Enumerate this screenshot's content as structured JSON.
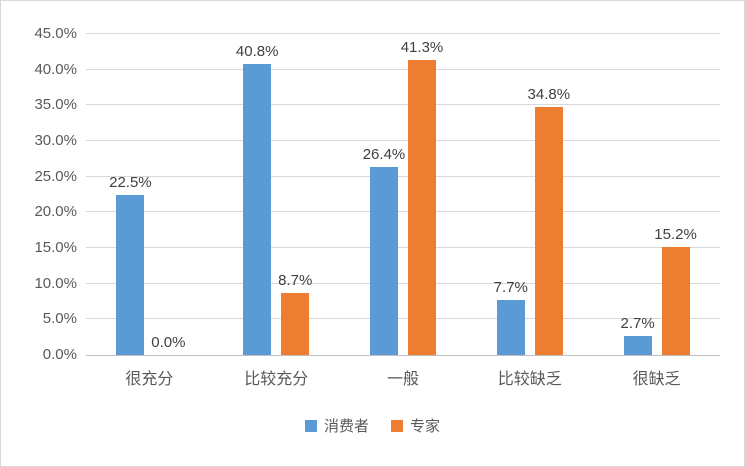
{
  "chart_data": {
    "type": "bar",
    "title": "",
    "xlabel": "",
    "ylabel": "",
    "categories": [
      "很充分",
      "比较充分",
      "一般",
      "比较缺乏",
      "很缺乏"
    ],
    "series": [
      {
        "name": "消费者",
        "color": "#5B9BD5",
        "values": [
          22.5,
          40.8,
          26.4,
          7.7,
          2.7
        ]
      },
      {
        "name": "专家",
        "color": "#ED7D31",
        "values": [
          0.0,
          8.7,
          41.3,
          34.8,
          15.2
        ]
      }
    ],
    "ylim": [
      0,
      45
    ],
    "ytick_step": 5,
    "ytick_labels": [
      "0.0%",
      "5.0%",
      "10.0%",
      "15.0%",
      "20.0%",
      "25.0%",
      "30.0%",
      "35.0%",
      "40.0%",
      "45.0%"
    ],
    "grid": true,
    "legend_position": "bottom",
    "data_label_format": "0.0%"
  }
}
